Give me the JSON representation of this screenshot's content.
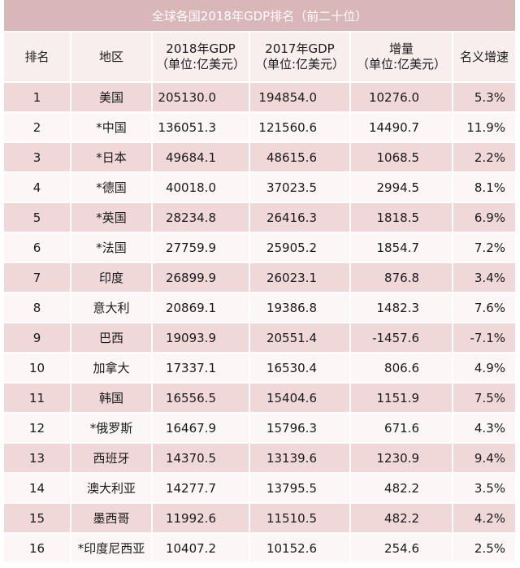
{
  "title": "全球各国2018年GDP排名（前二十位）",
  "headers": {
    "rank": "排名",
    "region": "地区",
    "gdp2018_line1": "2018年GDP",
    "gdp2018_line2": "（单位:亿美元）",
    "gdp2017_line1": "2017年GDP",
    "gdp2017_line2": "（单位:亿美元）",
    "increase_line1": "增量",
    "increase_line2": "（单位:亿美元）",
    "rate": "名义增速"
  },
  "rows": [
    {
      "rank": "1",
      "region": "美国",
      "gdp2018": "205130.0",
      "gdp2017": "194854.0",
      "increase": "10276.0",
      "rate": "5.3%"
    },
    {
      "rank": "2",
      "region": "*中国",
      "gdp2018": "136051.3",
      "gdp2017": "121560.6",
      "increase": "14490.7",
      "rate": "11.9%"
    },
    {
      "rank": "3",
      "region": "*日本",
      "gdp2018": "49684.1",
      "gdp2017": "48615.6",
      "increase": "1068.5",
      "rate": "2.2%"
    },
    {
      "rank": "4",
      "region": "*德国",
      "gdp2018": "40018.0",
      "gdp2017": "37023.5",
      "increase": "2994.5",
      "rate": "8.1%"
    },
    {
      "rank": "5",
      "region": "*英国",
      "gdp2018": "28234.8",
      "gdp2017": "26416.3",
      "increase": "1818.5",
      "rate": "6.9%"
    },
    {
      "rank": "6",
      "region": "*法国",
      "gdp2018": "27759.9",
      "gdp2017": "25905.2",
      "increase": "1854.7",
      "rate": "7.2%"
    },
    {
      "rank": "7",
      "region": "印度",
      "gdp2018": "26899.9",
      "gdp2017": "26023.1",
      "increase": "876.8",
      "rate": "3.4%"
    },
    {
      "rank": "8",
      "region": "意大利",
      "gdp2018": "20869.1",
      "gdp2017": "19386.8",
      "increase": "1482.3",
      "rate": "7.6%"
    },
    {
      "rank": "9",
      "region": "巴西",
      "gdp2018": "19093.9",
      "gdp2017": "20551.4",
      "increase": "-1457.6",
      "rate": "-7.1%"
    },
    {
      "rank": "10",
      "region": "加拿大",
      "gdp2018": "17337.1",
      "gdp2017": "16530.4",
      "increase": "806.6",
      "rate": "4.9%"
    },
    {
      "rank": "11",
      "region": "韩国",
      "gdp2018": "16556.5",
      "gdp2017": "15404.6",
      "increase": "1151.9",
      "rate": "7.5%"
    },
    {
      "rank": "12",
      "region": "*俄罗斯",
      "gdp2018": "16467.9",
      "gdp2017": "15796.3",
      "increase": "671.6",
      "rate": "4.3%"
    },
    {
      "rank": "13",
      "region": "西班牙",
      "gdp2018": "14370.5",
      "gdp2017": "13139.6",
      "increase": "1230.9",
      "rate": "9.4%"
    },
    {
      "rank": "14",
      "region": "澳大利亚",
      "gdp2018": "14277.7",
      "gdp2017": "13795.5",
      "increase": "482.2",
      "rate": "3.5%"
    },
    {
      "rank": "15",
      "region": "墨西哥",
      "gdp2018": "11992.6",
      "gdp2017": "11510.5",
      "increase": "482.2",
      "rate": "4.2%"
    },
    {
      "rank": "16",
      "region": "*印度尼西亚",
      "gdp2018": "10407.2",
      "gdp2017": "10152.6",
      "increase": "254.6",
      "rate": "2.5%"
    }
  ]
}
